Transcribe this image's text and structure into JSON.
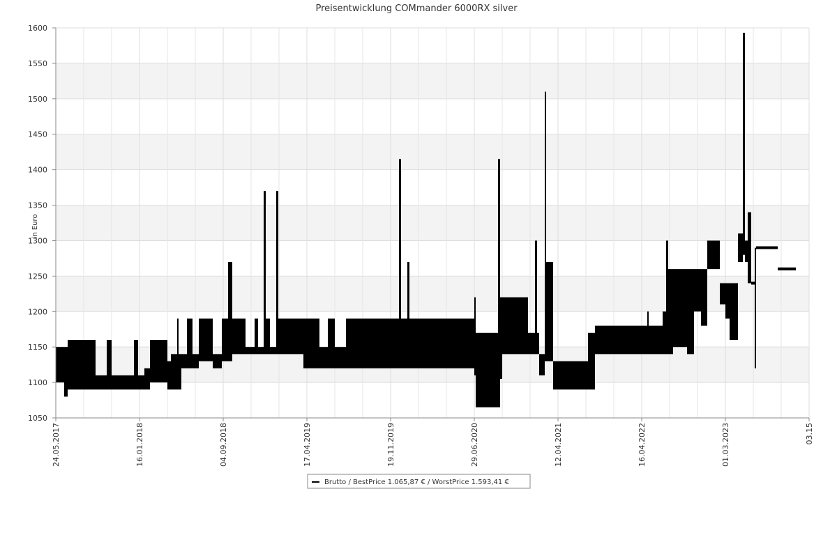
{
  "chart_data": {
    "type": "range",
    "title": "Preisentwicklung COMmander 6000RX silver",
    "ylabel": "in Euro",
    "xlim": [
      0,
      1080
    ],
    "xticks": [
      {
        "value": 0,
        "label": "24.05.2017"
      },
      {
        "value": 120,
        "label": "16.01.2018"
      },
      {
        "value": 240,
        "label": "04.09.2018"
      },
      {
        "value": 360,
        "label": "17.04.2019"
      },
      {
        "value": 480,
        "label": "19.11.2019"
      },
      {
        "value": 600,
        "label": "29.06.2020"
      },
      {
        "value": 720,
        "label": "12.04.2021"
      },
      {
        "value": 840,
        "label": "16.04.2022"
      },
      {
        "value": 960,
        "label": "01.03.2023"
      },
      {
        "value": 1080,
        "label": "03.15"
      }
    ],
    "xminor": [
      40,
      80,
      160,
      200,
      280,
      320,
      400,
      440,
      520,
      560,
      640,
      680,
      760,
      800,
      880,
      920,
      1000,
      1040
    ],
    "ylim": [
      1050,
      1600
    ],
    "yticks": [
      1050,
      1100,
      1150,
      1200,
      1250,
      1300,
      1350,
      1400,
      1450,
      1500,
      1550,
      1600
    ],
    "grid": true,
    "series": [
      {
        "name": "Brutto / BestPrice  1.065,87 € / WorstPrice  1.593,41 €",
        "color": "#000000",
        "x": [
          0,
          12,
          17,
          57,
          73,
          80,
          112,
          118,
          127,
          135,
          160,
          165,
          174,
          176,
          180,
          188,
          196,
          205,
          225,
          238,
          247,
          253,
          272,
          285,
          290,
          298,
          301,
          307,
          316,
          319,
          355,
          378,
          390,
          400,
          416,
          492,
          495,
          504,
          507,
          600,
          602,
          634,
          637,
          640,
          677,
          687,
          690,
          693,
          701,
          703,
          713,
          763,
          773,
          848,
          850,
          870,
          875,
          878,
          885,
          905,
          915,
          925,
          934,
          952,
          960,
          966,
          978,
          985,
          988,
          992,
          997,
          1002,
          1004,
          1035,
          1061
        ],
        "low": [
          1100,
          1080,
          1090,
          1090,
          1090,
          1090,
          1090,
          1090,
          1090,
          1100,
          1090,
          1090,
          1090,
          1090,
          1120,
          1120,
          1120,
          1130,
          1120,
          1130,
          1130,
          1140,
          1140,
          1140,
          1140,
          1140,
          1140,
          1140,
          1140,
          1140,
          1120,
          1120,
          1120,
          1120,
          1120,
          1120,
          1120,
          1120,
          1120,
          1110,
          1065,
          1065,
          1105,
          1140,
          1140,
          1140,
          1140,
          1110,
          1130,
          1130,
          1090,
          1090,
          1140,
          1140,
          1140,
          1140,
          1140,
          1140,
          1150,
          1140,
          1200,
          1180,
          1260,
          1210,
          1190,
          1160,
          1270,
          1280,
          1270,
          1240,
          1238,
          1120,
          1288,
          1258,
          null
        ],
        "high": [
          1150,
          1150,
          1160,
          1110,
          1160,
          1110,
          1160,
          1110,
          1120,
          1160,
          1130,
          1140,
          1190,
          1140,
          1140,
          1190,
          1140,
          1190,
          1140,
          1190,
          1270,
          1190,
          1150,
          1190,
          1150,
          1370,
          1190,
          1150,
          1370,
          1190,
          1190,
          1150,
          1190,
          1150,
          1190,
          1415,
          1190,
          1270,
          1190,
          1220,
          1170,
          1415,
          1220,
          1220,
          1170,
          1300,
          1170,
          1140,
          1510,
          1270,
          1130,
          1170,
          1180,
          1200,
          1180,
          1200,
          1300,
          1260,
          1260,
          1260,
          1260,
          1260,
          1300,
          1240,
          1240,
          1240,
          1310,
          1593,
          1300,
          1340,
          1242,
          1290,
          1292,
          1262,
          null
        ]
      }
    ]
  }
}
